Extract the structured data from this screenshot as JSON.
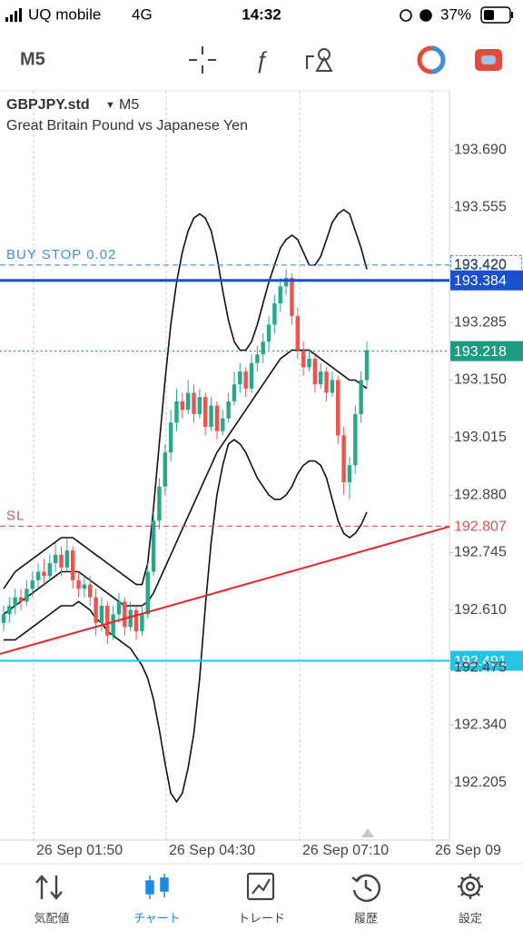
{
  "status_bar": {
    "carrier": "UQ mobile",
    "network": "4G",
    "time": "14:32",
    "battery": "37%"
  },
  "toolbar": {
    "timeframe": "M5"
  },
  "chart_data": {
    "type": "candlestick",
    "symbol": "GBPJPY.std",
    "timeframe": "M5",
    "description": "Great Britain Pound vs Japanese Yen",
    "ylim": [
      192.07,
      193.829
    ],
    "yticks": [
      {
        "value": 193.69,
        "label": "193.690"
      },
      193.555,
      {
        "value": 193.42,
        "label": "193.420"
      },
      193.285,
      {
        "value": 193.15,
        "label": "193.150"
      },
      193.015,
      {
        "value": 192.88,
        "label": "192.880"
      },
      192.745,
      {
        "value": 192.61,
        "label": "192.610"
      },
      192.475,
      {
        "value": 192.34,
        "label": "192.340"
      },
      192.205
    ],
    "xticks": [
      "26 Sep 01:50",
      "26 Sep 04:30",
      "26 Sep 07:10",
      "26 Sep 09"
    ],
    "grid": "vertical",
    "colors": {
      "up": "#26a98a",
      "down": "#ef5350",
      "band": "#111111"
    },
    "candles": [
      [
        192.58,
        192.62,
        192.56,
        192.6
      ],
      [
        192.6,
        192.64,
        192.58,
        192.62
      ],
      [
        192.62,
        192.66,
        192.6,
        192.64
      ],
      [
        192.64,
        192.66,
        192.61,
        192.63
      ],
      [
        192.63,
        192.68,
        192.62,
        192.66
      ],
      [
        192.66,
        192.7,
        192.64,
        192.68
      ],
      [
        192.68,
        192.72,
        192.66,
        192.7
      ],
      [
        192.7,
        192.73,
        192.67,
        192.69
      ],
      [
        192.69,
        192.74,
        192.68,
        192.72
      ],
      [
        192.72,
        192.77,
        192.7,
        192.74
      ],
      [
        192.74,
        192.76,
        192.69,
        192.71
      ],
      [
        192.71,
        192.78,
        192.7,
        192.75
      ],
      [
        192.75,
        192.76,
        192.66,
        192.68
      ],
      [
        192.68,
        192.7,
        192.64,
        192.66
      ],
      [
        192.66,
        192.69,
        192.64,
        192.67
      ],
      [
        192.67,
        192.69,
        192.62,
        192.64
      ],
      [
        192.64,
        192.66,
        192.55,
        192.58
      ],
      [
        192.58,
        192.64,
        192.56,
        192.62
      ],
      [
        192.62,
        192.63,
        192.53,
        192.55
      ],
      [
        192.55,
        192.62,
        192.54,
        192.6
      ],
      [
        192.6,
        192.65,
        192.58,
        192.63
      ],
      [
        192.63,
        192.64,
        192.55,
        192.57
      ],
      [
        192.57,
        192.63,
        192.56,
        192.61
      ],
      [
        192.61,
        192.62,
        192.54,
        192.56
      ],
      [
        192.56,
        192.62,
        192.55,
        192.6
      ],
      [
        192.6,
        192.72,
        192.59,
        192.7
      ],
      [
        192.7,
        192.84,
        192.69,
        192.82
      ],
      [
        192.82,
        192.92,
        192.8,
        192.9
      ],
      [
        192.9,
        193.0,
        192.88,
        192.98
      ],
      [
        192.98,
        193.08,
        192.96,
        193.05
      ],
      [
        193.05,
        193.13,
        193.03,
        193.1
      ],
      [
        193.1,
        193.12,
        193.06,
        193.08
      ],
      [
        193.08,
        193.15,
        193.07,
        193.12
      ],
      [
        193.12,
        193.14,
        193.05,
        193.07
      ],
      [
        193.07,
        193.13,
        193.06,
        193.11
      ],
      [
        193.11,
        193.12,
        193.02,
        193.04
      ],
      [
        193.04,
        193.11,
        193.03,
        193.09
      ],
      [
        193.09,
        193.1,
        193.01,
        193.03
      ],
      [
        193.03,
        193.08,
        193.02,
        193.06
      ],
      [
        193.06,
        193.12,
        193.05,
        193.1
      ],
      [
        193.1,
        193.17,
        193.09,
        193.14
      ],
      [
        193.14,
        193.19,
        193.12,
        193.17
      ],
      [
        193.17,
        193.18,
        193.11,
        193.13
      ],
      [
        193.13,
        193.21,
        193.12,
        193.19
      ],
      [
        193.19,
        193.23,
        193.17,
        193.21
      ],
      [
        193.21,
        193.26,
        193.19,
        193.24
      ],
      [
        193.24,
        193.3,
        193.22,
        193.28
      ],
      [
        193.28,
        193.35,
        193.26,
        193.33
      ],
      [
        193.33,
        193.39,
        193.31,
        193.37
      ],
      [
        193.37,
        193.41,
        193.35,
        193.39
      ],
      [
        193.39,
        193.4,
        193.28,
        193.3
      ],
      [
        193.3,
        193.32,
        193.2,
        193.22
      ],
      [
        193.22,
        193.24,
        193.16,
        193.18
      ],
      [
        193.18,
        193.22,
        193.17,
        193.2
      ],
      [
        193.2,
        193.21,
        193.12,
        193.14
      ],
      [
        193.14,
        193.19,
        193.13,
        193.17
      ],
      [
        193.17,
        193.18,
        193.1,
        193.12
      ],
      [
        193.12,
        193.17,
        193.11,
        193.15
      ],
      [
        193.15,
        193.16,
        193.0,
        193.02
      ],
      [
        193.02,
        193.04,
        192.88,
        192.91
      ],
      [
        192.91,
        192.97,
        192.87,
        192.95
      ],
      [
        192.95,
        193.09,
        192.93,
        193.07
      ],
      [
        193.07,
        193.17,
        193.05,
        193.15
      ],
      [
        193.15,
        193.24,
        193.13,
        193.22
      ]
    ],
    "bands": {
      "upper": [
        192.66,
        192.68,
        192.7,
        192.71,
        192.72,
        192.73,
        192.74,
        192.75,
        192.76,
        192.77,
        192.78,
        192.78,
        192.78,
        192.77,
        192.76,
        192.75,
        192.74,
        192.73,
        192.72,
        192.71,
        192.7,
        192.69,
        192.68,
        192.67,
        192.67,
        192.72,
        192.85,
        193.0,
        193.15,
        193.28,
        193.38,
        193.45,
        193.5,
        193.53,
        193.54,
        193.53,
        193.5,
        193.44,
        193.36,
        193.29,
        193.24,
        193.22,
        193.22,
        193.24,
        193.28,
        193.33,
        193.38,
        193.42,
        193.46,
        193.48,
        193.49,
        193.48,
        193.45,
        193.42,
        193.42,
        193.44,
        193.48,
        193.52,
        193.54,
        193.55,
        193.54,
        193.5,
        193.46,
        193.41
      ],
      "middle": [
        192.6,
        192.61,
        192.62,
        192.63,
        192.64,
        192.65,
        192.66,
        192.67,
        192.68,
        192.69,
        192.7,
        192.7,
        192.7,
        192.7,
        192.69,
        192.68,
        192.67,
        192.66,
        192.65,
        192.64,
        192.63,
        192.62,
        192.62,
        192.62,
        192.62,
        192.63,
        192.65,
        192.68,
        192.71,
        192.74,
        192.77,
        192.8,
        192.83,
        192.86,
        192.89,
        192.92,
        192.95,
        192.98,
        193.0,
        193.02,
        193.04,
        193.06,
        193.08,
        193.1,
        193.12,
        193.14,
        193.16,
        193.18,
        193.2,
        193.21,
        193.22,
        193.22,
        193.22,
        193.22,
        193.21,
        193.2,
        193.19,
        193.18,
        193.17,
        193.16,
        193.15,
        193.15,
        193.14,
        193.13
      ],
      "lower": [
        192.54,
        192.54,
        192.54,
        192.55,
        192.56,
        192.57,
        192.58,
        192.59,
        192.6,
        192.61,
        192.62,
        192.62,
        192.62,
        192.63,
        192.62,
        192.61,
        192.59,
        192.58,
        192.56,
        192.55,
        192.54,
        192.53,
        192.52,
        192.5,
        192.48,
        192.45,
        192.4,
        192.33,
        192.25,
        192.18,
        192.16,
        192.18,
        192.24,
        192.32,
        192.45,
        192.62,
        192.77,
        192.88,
        192.95,
        193.0,
        193.01,
        193.0,
        192.98,
        192.95,
        192.92,
        192.9,
        192.88,
        192.87,
        192.87,
        192.88,
        192.9,
        192.93,
        192.95,
        192.96,
        192.96,
        192.95,
        192.92,
        192.87,
        192.82,
        192.79,
        192.78,
        192.79,
        192.81,
        192.84
      ]
    },
    "trendline": {
      "values": [
        192.507,
        192.806
      ],
      "color": "#e8262a"
    },
    "levels": [
      {
        "name": "BUY STOP 0.02",
        "value": 193.42,
        "value_label": "193.420",
        "color": "#3d8fe0",
        "style": "dashed",
        "label_style": "outline"
      },
      {
        "value": 193.384,
        "color": "#1a4fd0",
        "style": "solid",
        "label_style": "fill"
      },
      {
        "value": 193.218,
        "color": "#1f9a82",
        "style": "dotted",
        "label_style": "fill"
      },
      {
        "name": "SL",
        "value": 192.807,
        "color": "#d9534f",
        "style": "dashed",
        "label_style": "text"
      },
      {
        "value": 192.491,
        "color": "#27c3e2",
        "style": "solid",
        "label_style": "fill"
      }
    ]
  },
  "nav": {
    "items": [
      "気配値",
      "チャート",
      "トレード",
      "履歴",
      "設定"
    ],
    "active": 1
  }
}
